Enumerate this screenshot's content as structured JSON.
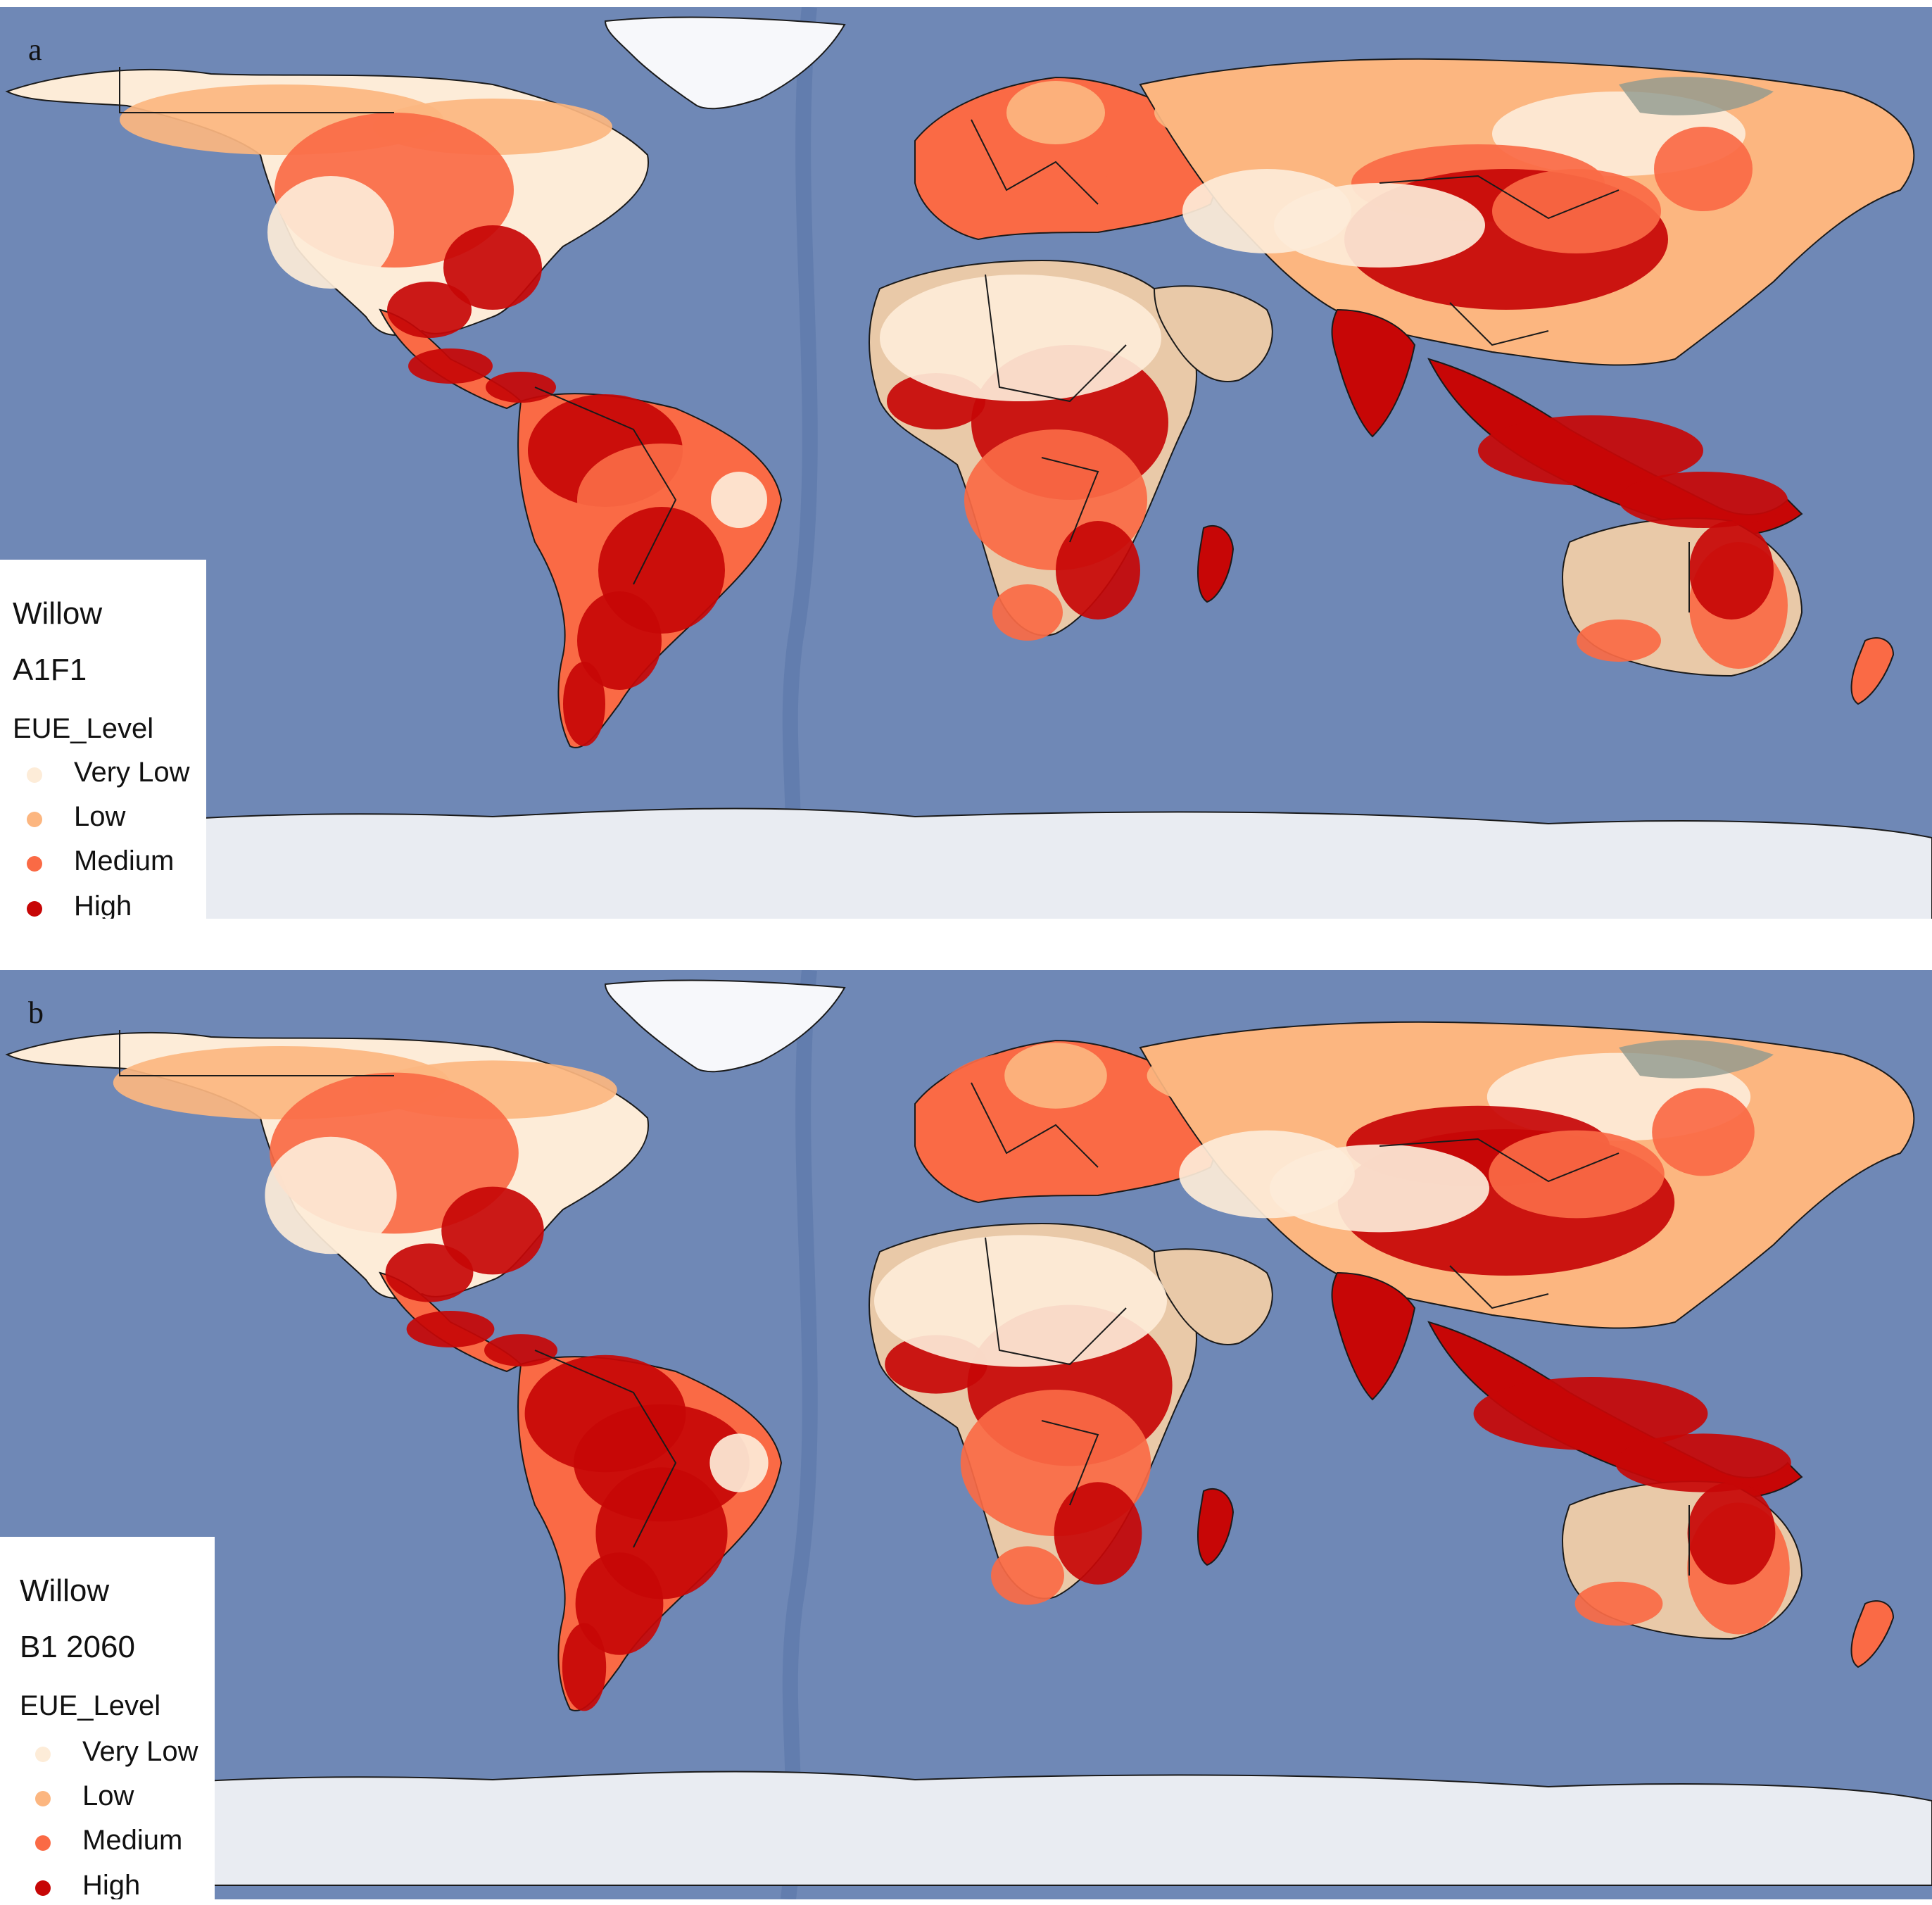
{
  "colors": {
    "ocean": "#6f88b6",
    "ocean_deep": "#5a76a8",
    "ice": "#e9ecf2",
    "desert": "#e9c9a8",
    "tundra": "#8f9a8e",
    "very_low": "#fdecd8",
    "low": "#fcb680",
    "medium": "#fa6a45",
    "high": "#c70606",
    "border": "#1a1a1a"
  },
  "panels": [
    {
      "letter": "a",
      "legend": {
        "crop": "Willow",
        "scenario": "A1F1",
        "field": "EUE_Level",
        "items": [
          "Very Low",
          "Low",
          "Medium",
          "High"
        ]
      }
    },
    {
      "letter": "b",
      "legend": {
        "crop": "Willow",
        "scenario": "B1 2060",
        "field": "EUE_Level",
        "items": [
          "Very Low",
          "Low",
          "Medium",
          "High"
        ]
      }
    }
  ]
}
